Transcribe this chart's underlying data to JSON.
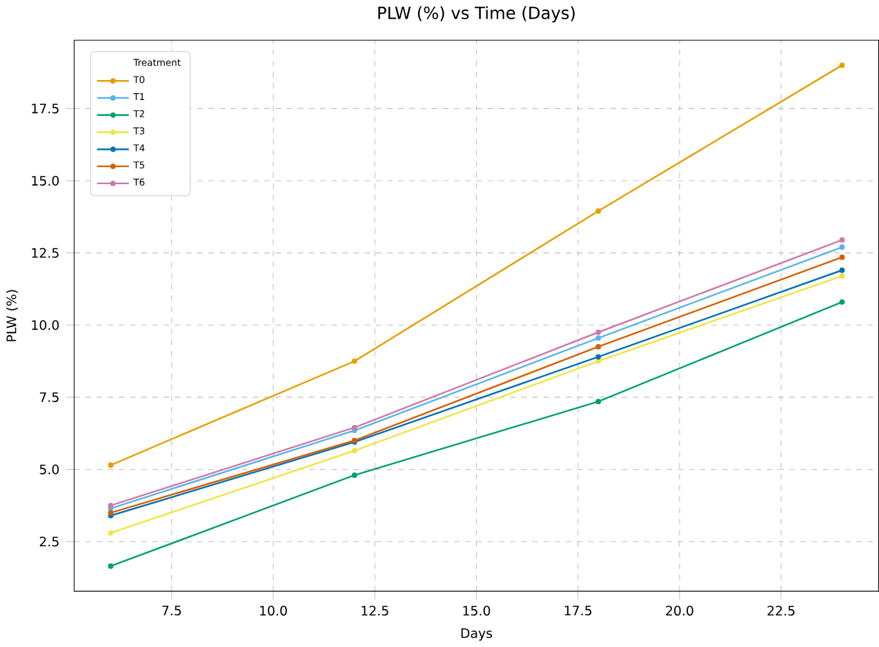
{
  "chart_data": {
    "type": "line",
    "title": "PLW (%) vs Time (Days)",
    "xlabel": "Days",
    "ylabel": "PLW (%)",
    "legend_title": "Treatment",
    "x": [
      6,
      12,
      18,
      24
    ],
    "series": [
      {
        "name": "T0",
        "color": "#e69f00",
        "values": [
          5.15,
          8.75,
          13.95,
          19.0
        ]
      },
      {
        "name": "T1",
        "color": "#56b4e9",
        "values": [
          3.65,
          6.35,
          9.55,
          12.7
        ]
      },
      {
        "name": "T2",
        "color": "#009e73",
        "values": [
          1.65,
          4.8,
          7.35,
          10.8
        ]
      },
      {
        "name": "T3",
        "color": "#f0e442",
        "values": [
          2.8,
          5.65,
          8.75,
          11.7
        ]
      },
      {
        "name": "T4",
        "color": "#0072b2",
        "values": [
          3.4,
          5.95,
          8.9,
          11.9
        ]
      },
      {
        "name": "T5",
        "color": "#d55e00",
        "values": [
          3.5,
          6.0,
          9.25,
          12.35
        ]
      },
      {
        "name": "T6",
        "color": "#cc79a7",
        "values": [
          3.75,
          6.45,
          9.75,
          12.95
        ]
      }
    ],
    "xlim": [
      5.1,
      24.9
    ],
    "ylim": [
      0.78,
      19.87
    ],
    "xticks": [
      7.5,
      {
        "value": 10,
        "label": "10.0"
      },
      12.5,
      {
        "value": 15,
        "label": "15.0"
      },
      17.5,
      {
        "value": 20,
        "label": "20.0"
      },
      22.5
    ],
    "yticks": [
      2.5,
      {
        "value": 5,
        "label": "5.0"
      },
      7.5,
      {
        "value": 10,
        "label": "10.0"
      },
      12.5,
      {
        "value": 15,
        "label": "15.0"
      },
      17.5
    ],
    "grid": true,
    "legend": "top left",
    "marker": "circle",
    "line_style": "solid"
  }
}
